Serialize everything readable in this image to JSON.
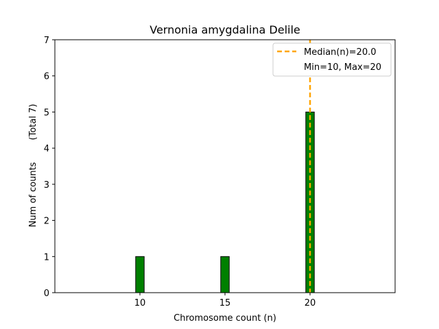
{
  "chart_data": {
    "type": "bar",
    "title": "Vernonia amygdalina Delile",
    "xlabel": "Chromosome count (n)",
    "ylabel": "Num of counts",
    "ylabel_total": "(Total 7)",
    "xlim": [
      5,
      25
    ],
    "ylim": [
      0,
      7
    ],
    "x_ticks": [
      10,
      15,
      20
    ],
    "y_ticks": [
      0,
      1,
      2,
      3,
      4,
      5,
      6,
      7
    ],
    "bars": [
      {
        "x": 10,
        "value": 1
      },
      {
        "x": 15,
        "value": 1
      },
      {
        "x": 20,
        "value": 5
      }
    ],
    "median": 20.0,
    "legend": {
      "position": "top-right",
      "entries": [
        "Median(n)=20.0",
        "Min=10, Max=20"
      ]
    },
    "colors": {
      "bar_fill": "#008000",
      "bar_edge": "#000000",
      "median_line": "#FFA500"
    }
  }
}
